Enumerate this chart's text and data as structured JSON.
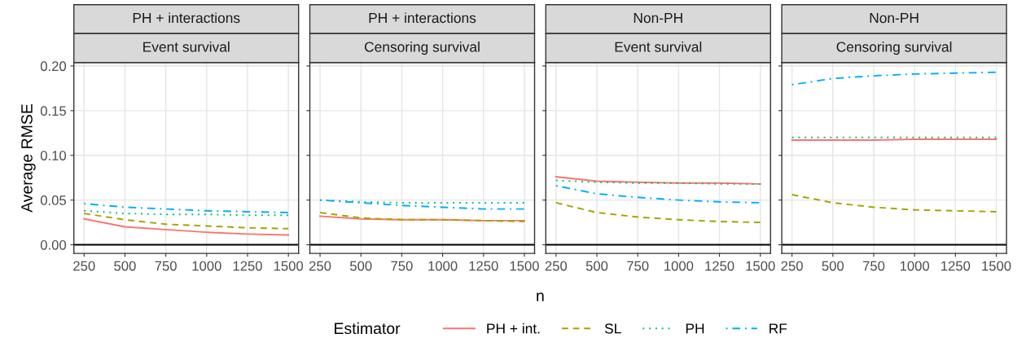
{
  "chart_data": [
    {
      "type": "line",
      "title": "PH + interactions",
      "subtitle": "Event survival",
      "ylabel": "Average RMSE",
      "legend_title": "Estimator",
      "legend": "bottom",
      "grid": true,
      "tick_labels": "xy",
      "x": [
        250,
        500,
        750,
        1000,
        1250,
        1500
      ],
      "xlim": [
        187.5,
        1562.5
      ],
      "xticks": [
        250,
        500,
        750,
        1000,
        1250,
        1500
      ],
      "ylim": [
        -0.0097,
        0.2037
      ],
      "yticks": [
        {
          "value": 0,
          "label": "0.00"
        },
        {
          "value": 0.05,
          "label": "0.05"
        },
        {
          "value": 0.1,
          "label": "0.10"
        },
        {
          "value": 0.15,
          "label": "0.15"
        },
        {
          "value": 0.2,
          "label": "0.20"
        }
      ],
      "ref_lines": [
        {
          "axis": "y",
          "value": 0,
          "color": "#000000"
        }
      ],
      "series": [
        {
          "name": "PH + int.",
          "color": "#f8766d",
          "line_style": "solid",
          "values": [
            0.029,
            0.02,
            0.017,
            0.014,
            0.012,
            0.011
          ]
        },
        {
          "name": "SL",
          "color": "#a3a500",
          "line_style": "dashed",
          "values": [
            0.035,
            0.028,
            0.023,
            0.021,
            0.019,
            0.018
          ]
        },
        {
          "name": "PH",
          "color": "#00bf7d",
          "line_style": "dotted",
          "values": [
            0.038,
            0.035,
            0.034,
            0.034,
            0.033,
            0.033
          ]
        },
        {
          "name": "RF",
          "color": "#00b0f6",
          "line_style": "dashdot",
          "values": [
            0.046,
            0.042,
            0.04,
            0.038,
            0.037,
            0.036
          ]
        }
      ]
    },
    {
      "type": "line",
      "title": "PH + interactions",
      "subtitle": "Censoring survival",
      "xlabel": "n",
      "grid": true,
      "tick_labels": "x",
      "x": [
        250,
        500,
        750,
        1000,
        1250,
        1500
      ],
      "xlim": [
        187.5,
        1562.5
      ],
      "xticks": [
        250,
        500,
        750,
        1000,
        1250,
        1500
      ],
      "ylim": [
        -0.0097,
        0.2037
      ],
      "yticks": [
        0,
        0.05,
        0.1,
        0.15,
        0.2
      ],
      "ref_lines": [
        {
          "axis": "y",
          "value": 0,
          "color": "#000000"
        }
      ],
      "series": [
        {
          "color": "#f8766d",
          "line_style": "solid",
          "values": [
            0.032,
            0.029,
            0.028,
            0.028,
            0.027,
            0.027
          ]
        },
        {
          "color": "#a3a500",
          "line_style": "dashed",
          "values": [
            0.036,
            0.03,
            0.028,
            0.028,
            0.027,
            0.026
          ]
        },
        {
          "color": "#00bf7d",
          "line_style": "dotted",
          "values": [
            0.05,
            0.048,
            0.047,
            0.047,
            0.047,
            0.047
          ]
        },
        {
          "color": "#00b0f6",
          "line_style": "dashdot",
          "values": [
            0.05,
            0.047,
            0.044,
            0.042,
            0.04,
            0.04
          ]
        }
      ]
    },
    {
      "type": "line",
      "title": "Non-PH",
      "subtitle": "Event survival",
      "grid": true,
      "tick_labels": "x",
      "x": [
        250,
        500,
        750,
        1000,
        1250,
        1500
      ],
      "xlim": [
        187.5,
        1562.5
      ],
      "xticks": [
        250,
        500,
        750,
        1000,
        1250,
        1500
      ],
      "ylim": [
        -0.0097,
        0.2037
      ],
      "yticks": [
        0,
        0.05,
        0.1,
        0.15,
        0.2
      ],
      "ref_lines": [
        {
          "axis": "y",
          "value": 0,
          "color": "#000000"
        }
      ],
      "series": [
        {
          "color": "#f8766d",
          "line_style": "solid",
          "values": [
            0.076,
            0.071,
            0.07,
            0.069,
            0.069,
            0.068
          ]
        },
        {
          "color": "#a3a500",
          "line_style": "dashed",
          "values": [
            0.047,
            0.036,
            0.031,
            0.028,
            0.026,
            0.025
          ]
        },
        {
          "color": "#00bf7d",
          "line_style": "dotted",
          "values": [
            0.072,
            0.07,
            0.069,
            0.069,
            0.068,
            0.068
          ]
        },
        {
          "color": "#00b0f6",
          "line_style": "dashdot",
          "values": [
            0.066,
            0.057,
            0.053,
            0.05,
            0.048,
            0.047
          ]
        }
      ]
    },
    {
      "type": "line",
      "title": "Non-PH",
      "subtitle": "Censoring survival",
      "grid": true,
      "tick_labels": "x",
      "x": [
        250,
        500,
        750,
        1000,
        1250,
        1500
      ],
      "xlim": [
        187.5,
        1562.5
      ],
      "xticks": [
        250,
        500,
        750,
        1000,
        1250,
        1500
      ],
      "ylim": [
        -0.0097,
        0.2037
      ],
      "yticks": [
        0,
        0.05,
        0.1,
        0.15,
        0.2
      ],
      "ref_lines": [
        {
          "axis": "y",
          "value": 0,
          "color": "#000000"
        }
      ],
      "series": [
        {
          "color": "#f8766d",
          "line_style": "solid",
          "values": [
            0.117,
            0.117,
            0.117,
            0.118,
            0.118,
            0.118
          ]
        },
        {
          "color": "#a3a500",
          "line_style": "dashed",
          "values": [
            0.056,
            0.047,
            0.042,
            0.039,
            0.038,
            0.037
          ]
        },
        {
          "color": "#00bf7d",
          "line_style": "dotted",
          "values": [
            0.12,
            0.12,
            0.12,
            0.12,
            0.12,
            0.12
          ]
        },
        {
          "color": "#00b0f6",
          "line_style": "dashdot",
          "values": [
            0.179,
            0.186,
            0.189,
            0.191,
            0.192,
            0.193
          ]
        }
      ]
    }
  ]
}
